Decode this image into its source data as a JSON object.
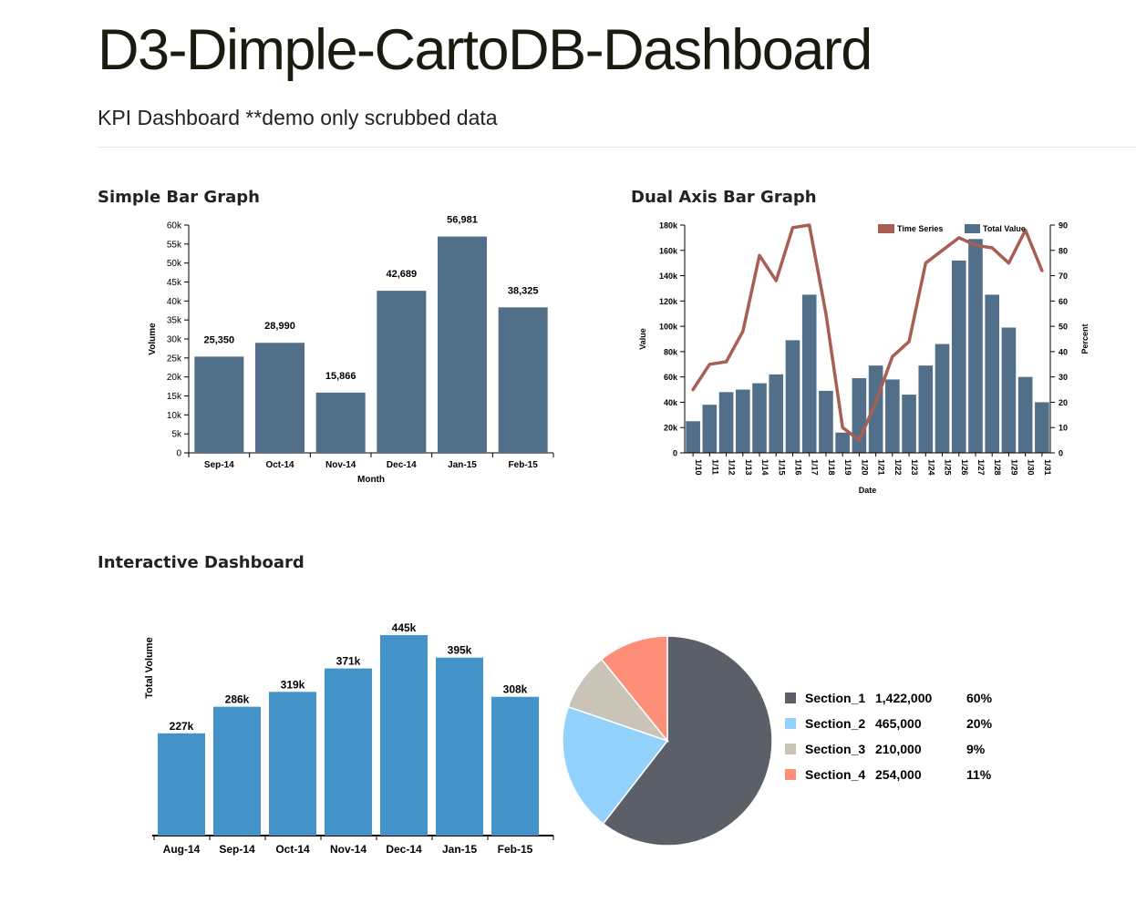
{
  "header": {
    "title": "D3-Dimple-CartoDB-Dashboard",
    "subtitle": "KPI Dashboard **demo only scrubbed data"
  },
  "sections": {
    "simple_bar": "Simple Bar Graph",
    "dual_axis": "Dual Axis Bar Graph",
    "interactive": "Interactive Dashboard"
  },
  "chart_data": [
    {
      "id": "simple-bar",
      "type": "bar",
      "categories": [
        "Sep-14",
        "Oct-14",
        "Nov-14",
        "Dec-14",
        "Jan-15",
        "Feb-15"
      ],
      "values": [
        25350,
        28990,
        15866,
        42689,
        56981,
        38325
      ],
      "value_labels": [
        "25,350",
        "28,990",
        "15,866",
        "42,689",
        "56,981",
        "38,325"
      ],
      "xlabel": "Month",
      "ylabel": "Volume",
      "ylim": [
        0,
        60000
      ],
      "yticks": [
        0,
        5000,
        10000,
        15000,
        20000,
        25000,
        30000,
        35000,
        40000,
        45000,
        50000,
        55000,
        60000
      ],
      "ytick_labels": [
        "0",
        "5k",
        "10k",
        "15k",
        "20k",
        "25k",
        "30k",
        "35k",
        "40k",
        "45k",
        "50k",
        "55k",
        "60k"
      ],
      "color": "#516f88"
    },
    {
      "id": "dual-axis",
      "type": "bar",
      "categories": [
        "1/10",
        "1/11",
        "1/12",
        "1/13",
        "1/14",
        "1/15",
        "1/16",
        "1/17",
        "1/18",
        "1/19",
        "1/20",
        "1/21",
        "1/22",
        "1/23",
        "1/24",
        "1/25",
        "1/26",
        "1/27",
        "1/28",
        "1/29",
        "1/30",
        "1/31"
      ],
      "series": [
        {
          "name": "Total Value",
          "type": "bar",
          "axis": "left",
          "color": "#516f88",
          "values": [
            25000,
            38000,
            48000,
            50000,
            55000,
            62000,
            89000,
            125000,
            49000,
            16000,
            59000,
            69000,
            58000,
            46000,
            69000,
            86000,
            152000,
            169000,
            125000,
            99000,
            60000,
            40000
          ]
        },
        {
          "name": "Time Series",
          "type": "line",
          "axis": "right",
          "color": "#a85e52",
          "values": [
            25,
            35,
            36,
            48,
            78,
            68,
            89,
            90,
            55,
            10,
            5,
            20,
            38,
            44,
            75,
            80,
            85,
            82,
            81,
            75,
            88,
            72
          ]
        }
      ],
      "xlabel": "Date",
      "ylabel": "Value",
      "y2label": "Percent",
      "ylim": [
        0,
        180000
      ],
      "yticks": [
        0,
        20000,
        40000,
        60000,
        80000,
        100000,
        120000,
        140000,
        160000,
        180000
      ],
      "ytick_labels": [
        "0",
        "20k",
        "40k",
        "60k",
        "80k",
        "100k",
        "120k",
        "140k",
        "160k",
        "180k"
      ],
      "y2lim": [
        0,
        90
      ],
      "y2ticks": [
        0,
        10,
        20,
        30,
        40,
        50,
        60,
        70,
        80,
        90
      ],
      "y2tick_labels": [
        "0",
        "10",
        "20",
        "30",
        "40",
        "50",
        "60",
        "70",
        "80",
        "90"
      ],
      "legend_position": "top-right"
    },
    {
      "id": "interactive-bar",
      "type": "bar",
      "categories": [
        "Aug-14",
        "Sep-14",
        "Oct-14",
        "Nov-14",
        "Dec-14",
        "Jan-15",
        "Feb-15"
      ],
      "values": [
        227000,
        286000,
        319000,
        371000,
        445000,
        395000,
        308000
      ],
      "value_labels": [
        "227k",
        "286k",
        "319k",
        "371k",
        "445k",
        "395k",
        "308k"
      ],
      "ylabel": "Total Volume",
      "ylim": [
        0,
        445000
      ],
      "color": "#4393c9"
    },
    {
      "id": "interactive-pie",
      "type": "pie",
      "slices": [
        {
          "label": "Section_1",
          "value": 1422000,
          "value_label": "1,422,000",
          "percent_label": "60%",
          "color": "#5b6068"
        },
        {
          "label": "Section_2",
          "value": 465000,
          "value_label": "465,000",
          "percent_label": "20%",
          "color": "#92d2fc"
        },
        {
          "label": "Section_3",
          "value": 210000,
          "value_label": "210,000",
          "percent_label": "9%",
          "color": "#c9c3b8"
        },
        {
          "label": "Section_4",
          "value": 254000,
          "value_label": "254,000",
          "percent_label": "11%",
          "color": "#fd8f79"
        }
      ],
      "legend_position": "right"
    }
  ]
}
